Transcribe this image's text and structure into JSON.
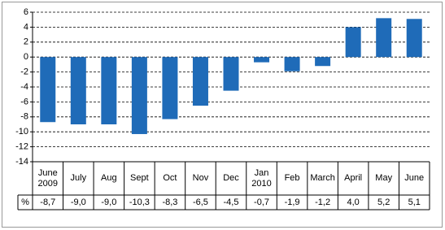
{
  "chart_data": {
    "type": "bar",
    "categories": [
      "June 2009",
      "July",
      "Aug",
      "Sept",
      "Oct",
      "Nov",
      "Dec",
      "Jan 2010",
      "Feb",
      "March",
      "April",
      "May",
      "June"
    ],
    "values": [
      -8.7,
      -9.0,
      -9.0,
      -10.3,
      -8.3,
      -6.5,
      -4.5,
      -0.7,
      -1.9,
      -1.2,
      4.0,
      5.2,
      5.1
    ],
    "value_labels": [
      "-8,7",
      "-9,0",
      "-9,0",
      "-10,3",
      "-8,3",
      "-6,5",
      "-4,5",
      "-0,7",
      "-1,9",
      "-1,2",
      "4,0",
      "5,2",
      "5,1"
    ],
    "row_label": "%",
    "color": "#1f6bb8",
    "ylim": [
      -14,
      6
    ],
    "yticks": [
      -14,
      -12,
      -10,
      -8,
      -6,
      -4,
      -2,
      0,
      2,
      4,
      6
    ],
    "grid": true
  }
}
